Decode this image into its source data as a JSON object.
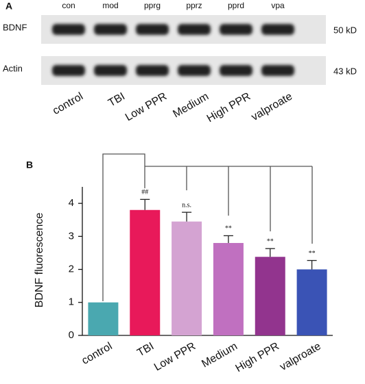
{
  "panel_a": {
    "label": "A",
    "lanes": [
      "con",
      "mod",
      "pprg",
      "pprz",
      "pprd",
      "vpa"
    ],
    "rows": [
      {
        "name": "BDNF",
        "size": "50 kD"
      },
      {
        "name": "Actin",
        "size": "43 kD"
      }
    ],
    "groups": [
      "control",
      "TBI",
      "Low PPR",
      "Medium",
      "High PPR",
      "valproate"
    ]
  },
  "chart_data": {
    "type": "bar",
    "panel_label": "B",
    "y_label": "BDNF fluorescence",
    "categories": [
      "control",
      "TBI",
      "Low PPR",
      "Medium",
      "High PPR",
      "valproate"
    ],
    "values": [
      1.0,
      3.8,
      3.45,
      2.8,
      2.38,
      2.0
    ],
    "errors": [
      0,
      0.32,
      0.28,
      0.22,
      0.25,
      0.27
    ],
    "colors": [
      "#4aa8b0",
      "#e8195a",
      "#d4a3d2",
      "#c070c0",
      "#92348e",
      "#3a53b5"
    ],
    "significance": [
      null,
      "##",
      "n.s.",
      "**",
      "**",
      "**"
    ],
    "ylim": [
      0,
      4.5
    ],
    "yticks": [
      0,
      1,
      2,
      3,
      4
    ]
  }
}
